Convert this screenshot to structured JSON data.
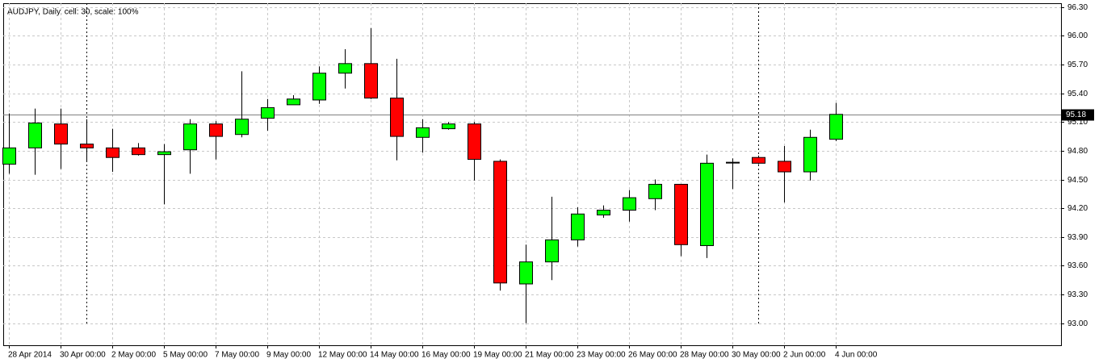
{
  "chart_data": {
    "type": "candlestick",
    "title": "AUDJPY, Daily, cell: 30, scale: 100%",
    "categories": [
      "28 Apr 2014",
      null,
      "30 Apr 00:00",
      null,
      "2 May 00:00",
      null,
      "5 May 00:00",
      null,
      "7 May 00:00",
      null,
      "9 May 00:00",
      null,
      "12 May 00:00",
      null,
      "14 May 00:00",
      null,
      "16 May 00:00",
      null,
      "19 May 00:00",
      null,
      "21 May 00:00",
      null,
      "23 May 00:00",
      null,
      "26 May 00:00",
      null,
      "28 May 00:00",
      null,
      "30 May 00:00",
      null,
      "2 Jun 00:00",
      null,
      "4 Jun 00:00"
    ],
    "open": [
      94.66,
      94.83,
      95.08,
      94.87,
      94.83,
      94.83,
      94.76,
      94.81,
      95.08,
      94.97,
      95.14,
      95.28,
      95.33,
      95.61,
      95.71,
      95.35,
      94.94,
      95.03,
      95.08,
      94.69,
      93.41,
      93.64,
      93.87,
      94.13,
      94.18,
      94.3,
      94.45,
      93.81,
      94.68,
      94.73,
      94.69,
      94.58,
      94.92
    ],
    "high": [
      95.19,
      95.24,
      95.24,
      95.13,
      95.03,
      94.88,
      94.87,
      95.13,
      95.11,
      95.63,
      95.34,
      95.38,
      95.68,
      95.86,
      96.08,
      95.76,
      95.13,
      95.1,
      95.1,
      94.71,
      93.82,
      94.32,
      94.21,
      94.23,
      94.39,
      94.5,
      94.45,
      94.76,
      94.72,
      94.75,
      94.85,
      95.02,
      95.3
    ],
    "low": [
      94.56,
      94.55,
      94.61,
      94.69,
      94.58,
      94.75,
      94.24,
      94.56,
      94.71,
      94.94,
      95.01,
      95.28,
      95.29,
      95.45,
      95.34,
      94.7,
      94.78,
      95.02,
      94.49,
      93.34,
      93.0,
      93.45,
      93.8,
      94.1,
      94.06,
      94.18,
      93.7,
      93.68,
      94.4,
      94.66,
      94.26,
      94.49,
      94.9
    ],
    "close": [
      94.83,
      95.09,
      94.87,
      94.83,
      94.73,
      94.76,
      94.79,
      95.08,
      94.95,
      95.13,
      95.25,
      95.34,
      95.61,
      95.71,
      95.35,
      94.95,
      95.04,
      95.08,
      94.71,
      93.42,
      93.64,
      93.87,
      94.14,
      94.18,
      94.31,
      94.45,
      93.82,
      94.67,
      94.68,
      94.67,
      94.58,
      94.94,
      95.18
    ],
    "up_color": "#00ff00",
    "down_color": "#ff0000",
    "ylim": [
      92.77,
      96.34
    ],
    "yticks": [
      {
        "value": 93.0,
        "label": "93.00"
      },
      {
        "value": 93.3,
        "label": "93.30"
      },
      {
        "value": 93.6,
        "label": "93.60"
      },
      {
        "value": 93.9,
        "label": "93.90"
      },
      {
        "value": 94.2,
        "label": "94.20"
      },
      {
        "value": 94.5,
        "label": "94.50"
      },
      {
        "value": 94.8,
        "label": "94.80"
      },
      {
        "value": 95.1,
        "label": "95.10"
      },
      {
        "value": 95.4,
        "label": "95.40"
      },
      {
        "value": 95.7,
        "label": "95.70"
      },
      {
        "value": 96.0,
        "label": "96.00"
      },
      {
        "value": 96.3,
        "label": "96.30"
      }
    ],
    "last_price": 95.18,
    "grid": true
  }
}
